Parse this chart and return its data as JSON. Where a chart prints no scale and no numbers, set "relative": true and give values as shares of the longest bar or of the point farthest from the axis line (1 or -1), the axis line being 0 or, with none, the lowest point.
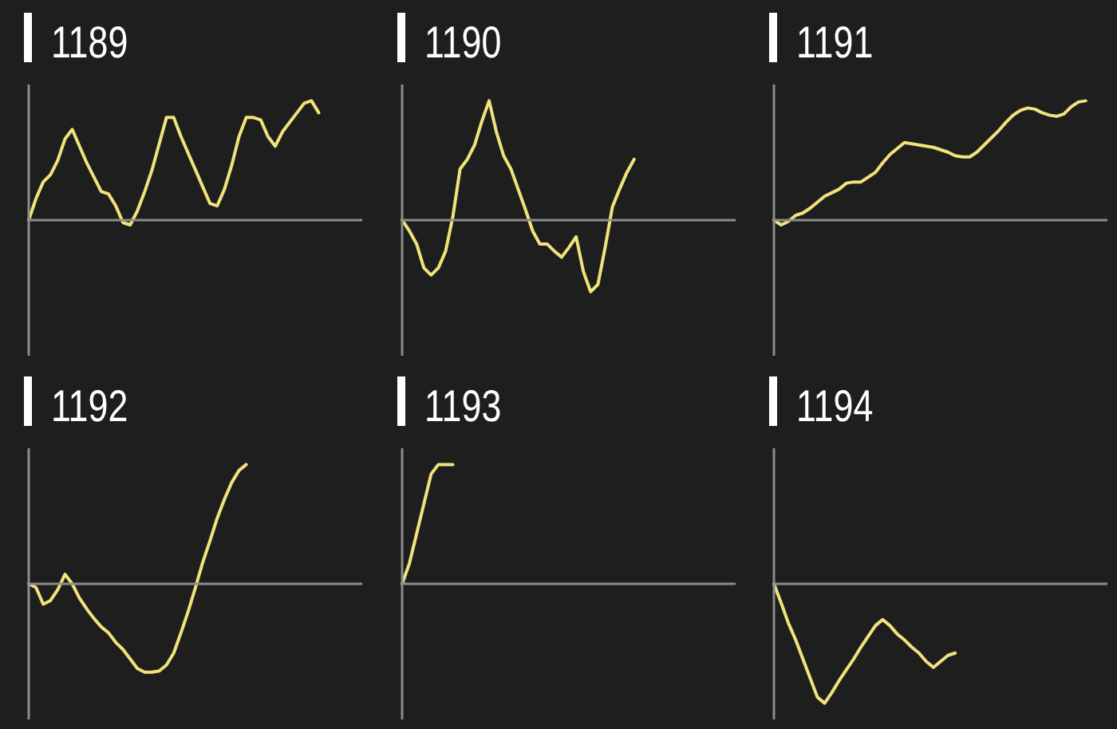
{
  "chart_data": [
    {
      "type": "line",
      "title": "1189",
      "relative": true,
      "tick_labels": false,
      "categories": [
        null,
        null,
        null,
        null,
        null,
        null,
        null,
        null,
        null,
        null,
        null,
        null,
        null,
        null,
        null,
        null,
        null,
        null,
        null,
        null,
        null,
        null,
        null,
        null,
        null,
        null,
        null,
        null,
        null,
        null,
        null,
        null,
        null,
        null,
        null,
        null,
        null,
        null,
        null,
        null,
        null,
        null,
        null,
        null,
        null,
        null,
        null
      ],
      "color": "#f1e27b",
      "values": [
        0,
        0.18,
        0.32,
        0.38,
        0.5,
        0.68,
        0.76,
        0.62,
        0.48,
        0.36,
        0.24,
        0.22,
        0.12,
        -0.02,
        -0.04,
        0.08,
        0.24,
        0.42,
        0.64,
        0.86,
        0.86,
        0.7,
        0.56,
        0.42,
        0.28,
        0.14,
        0.12,
        0.26,
        0.46,
        0.7,
        0.86,
        0.86,
        0.84,
        0.7,
        0.62,
        0.74,
        0.82,
        0.9,
        0.98,
        1,
        0.9,
        null,
        null,
        null,
        null,
        null,
        null
      ]
    },
    {
      "type": "line",
      "title": "1190",
      "relative": true,
      "tick_labels": false,
      "categories": [
        null,
        null,
        null,
        null,
        null,
        null,
        null,
        null,
        null,
        null,
        null,
        null,
        null,
        null,
        null,
        null,
        null,
        null,
        null,
        null,
        null,
        null,
        null,
        null,
        null,
        null,
        null,
        null,
        null,
        null,
        null,
        null,
        null,
        null,
        null,
        null,
        null,
        null,
        null,
        null,
        null,
        null,
        null,
        null,
        null,
        null,
        null
      ],
      "color": "#f1e27b",
      "values": [
        0,
        -0.09,
        -0.2,
        -0.4,
        -0.46,
        -0.4,
        -0.26,
        0.03,
        0.43,
        0.51,
        0.63,
        0.83,
        1,
        0.74,
        0.54,
        0.43,
        0.26,
        0.09,
        -0.09,
        -0.2,
        -0.2,
        -0.26,
        -0.31,
        -0.23,
        -0.14,
        -0.43,
        -0.6,
        -0.54,
        -0.23,
        0.11,
        0.26,
        0.4,
        0.51,
        null,
        null,
        null,
        null,
        null,
        null,
        null,
        null,
        null,
        null,
        null,
        null,
        null,
        null
      ]
    },
    {
      "type": "line",
      "title": "1191",
      "relative": true,
      "tick_labels": false,
      "categories": [
        null,
        null,
        null,
        null,
        null,
        null,
        null,
        null,
        null,
        null,
        null,
        null,
        null,
        null,
        null,
        null,
        null,
        null,
        null,
        null,
        null,
        null,
        null,
        null,
        null,
        null,
        null,
        null,
        null,
        null,
        null,
        null,
        null,
        null,
        null,
        null,
        null,
        null,
        null,
        null,
        null,
        null,
        null,
        null,
        null,
        null,
        null
      ],
      "color": "#f1e27b",
      "values": [
        0,
        -0.04,
        -0.01,
        0.04,
        0.06,
        0.1,
        0.15,
        0.2,
        0.23,
        0.26,
        0.31,
        0.32,
        0.32,
        0.36,
        0.4,
        0.48,
        0.55,
        0.6,
        0.65,
        0.64,
        0.63,
        0.62,
        0.61,
        0.59,
        0.57,
        0.54,
        0.53,
        0.53,
        0.57,
        0.63,
        0.69,
        0.75,
        0.82,
        0.88,
        0.92,
        0.94,
        0.93,
        0.9,
        0.88,
        0.87,
        0.89,
        0.95,
        0.99,
        1,
        null,
        null,
        null
      ]
    },
    {
      "type": "line",
      "title": "1192",
      "relative": true,
      "tick_labels": false,
      "categories": [
        null,
        null,
        null,
        null,
        null,
        null,
        null,
        null,
        null,
        null,
        null,
        null,
        null,
        null,
        null,
        null,
        null,
        null,
        null,
        null,
        null,
        null,
        null,
        null,
        null,
        null,
        null,
        null,
        null,
        null,
        null,
        null,
        null,
        null,
        null,
        null,
        null,
        null,
        null,
        null,
        null,
        null,
        null,
        null,
        null,
        null,
        null
      ],
      "color": "#f1e27b",
      "values": [
        0,
        -0.03,
        -0.17,
        -0.14,
        -0.05,
        0.08,
        0,
        -0.12,
        -0.21,
        -0.29,
        -0.36,
        -0.41,
        -0.49,
        -0.55,
        -0.63,
        -0.71,
        -0.74,
        -0.74,
        -0.73,
        -0.68,
        -0.58,
        -0.41,
        -0.23,
        -0.03,
        0.18,
        0.36,
        0.55,
        0.71,
        0.85,
        0.95,
        1,
        null,
        null,
        null,
        null,
        null,
        null,
        null,
        null,
        null,
        null,
        null,
        null,
        null,
        null,
        null,
        null
      ]
    },
    {
      "type": "line",
      "title": "1193",
      "relative": true,
      "tick_labels": false,
      "categories": [
        null,
        null,
        null,
        null,
        null,
        null,
        null,
        null,
        null,
        null,
        null,
        null,
        null,
        null,
        null,
        null,
        null,
        null,
        null,
        null,
        null,
        null,
        null,
        null,
        null,
        null,
        null,
        null,
        null,
        null,
        null,
        null,
        null,
        null,
        null,
        null,
        null,
        null,
        null,
        null,
        null,
        null,
        null,
        null,
        null,
        null,
        null
      ],
      "color": "#f1e27b",
      "values": [
        0,
        0.17,
        0.42,
        0.67,
        0.92,
        1,
        1,
        1,
        null,
        null,
        null,
        null,
        null,
        null,
        null,
        null,
        null,
        null,
        null,
        null,
        null,
        null,
        null,
        null,
        null,
        null,
        null,
        null,
        null,
        null,
        null,
        null,
        null,
        null,
        null,
        null,
        null,
        null,
        null,
        null,
        null,
        null,
        null,
        null,
        null,
        null,
        null
      ]
    },
    {
      "type": "line",
      "title": "1194",
      "relative": true,
      "tick_labels": false,
      "categories": [
        null,
        null,
        null,
        null,
        null,
        null,
        null,
        null,
        null,
        null,
        null,
        null,
        null,
        null,
        null,
        null,
        null,
        null,
        null,
        null,
        null,
        null,
        null,
        null,
        null,
        null,
        null,
        null,
        null,
        null,
        null,
        null,
        null,
        null,
        null,
        null,
        null,
        null,
        null,
        null,
        null,
        null,
        null,
        null,
        null,
        null,
        null
      ],
      "color": "#f1e27b",
      "values": [
        0,
        -0.16,
        -0.33,
        -0.47,
        -0.63,
        -0.79,
        -0.95,
        -1,
        -0.91,
        -0.81,
        -0.72,
        -0.63,
        -0.53,
        -0.44,
        -0.35,
        -0.3,
        -0.35,
        -0.42,
        -0.47,
        -0.53,
        -0.58,
        -0.65,
        -0.7,
        -0.65,
        -0.6,
        -0.58,
        null,
        null,
        null,
        null,
        null,
        null,
        null,
        null,
        null,
        null,
        null,
        null,
        null,
        null,
        null,
        null,
        null,
        null,
        null,
        null,
        null
      ]
    }
  ]
}
